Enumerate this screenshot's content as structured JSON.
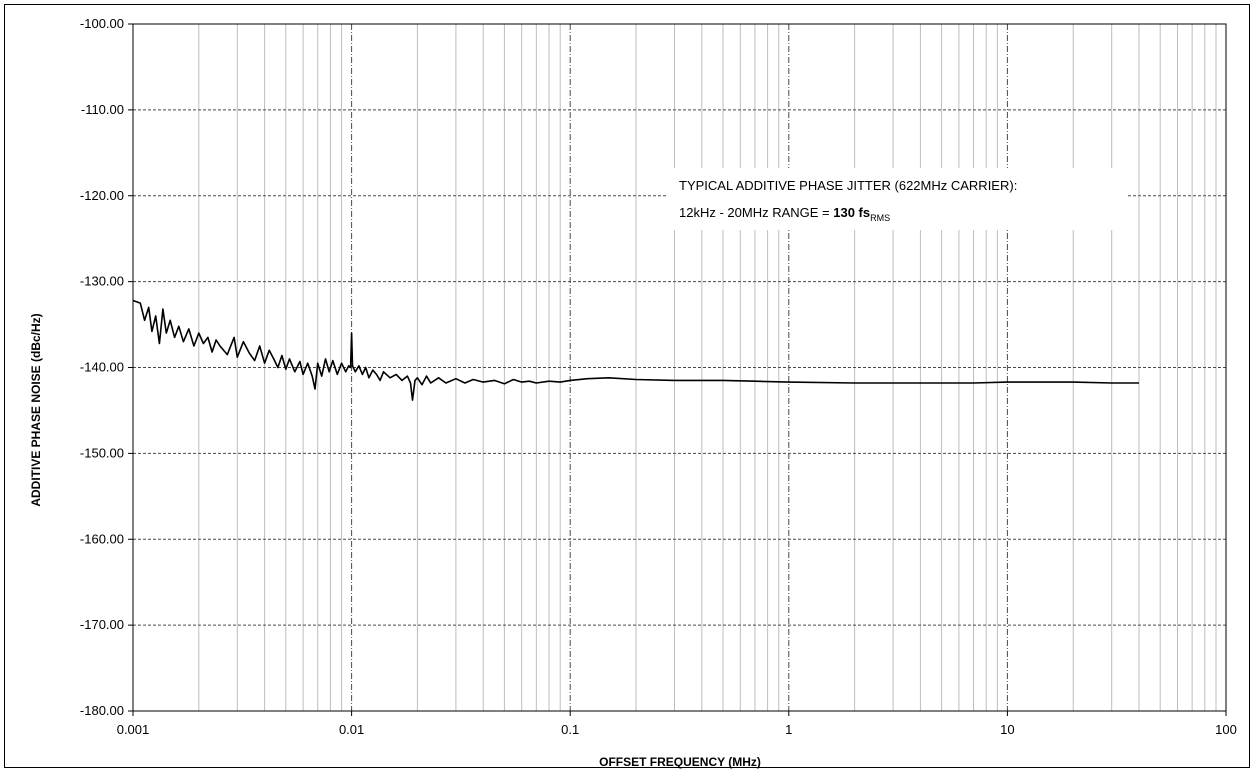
{
  "chart_data": {
    "type": "line",
    "title": "",
    "xlabel": "OFFSET FREQUENCY (MHz)",
    "ylabel": "ADDITIVE PHASE NOISE (dBc/Hz)",
    "xscale": "log",
    "xlim": [
      0.001,
      100
    ],
    "ylim": [
      -180,
      -100
    ],
    "x_ticks": [
      "0.001",
      "0.01",
      "0.1",
      "1",
      "10",
      "100"
    ],
    "y_ticks": [
      "-100.00",
      "-110.00",
      "-120.00",
      "-130.00",
      "-140.00",
      "-150.00",
      "-160.00",
      "-170.00",
      "-180.00"
    ],
    "grid": true,
    "legend": "none",
    "line_color": "#000000",
    "annotation": {
      "line1": "TYPICAL ADDITIVE PHASE JITTER (622MHz CARRIER):",
      "line2_prefix": "12kHz - 20MHz RANGE = ",
      "line2_value": "130 fs",
      "line2_subscript": "RMS"
    },
    "series": [
      {
        "x": [
          0.001,
          0.00108,
          0.00113,
          0.00118,
          0.00122,
          0.00127,
          0.00132,
          0.00137,
          0.00142,
          0.00148,
          0.00155,
          0.00162,
          0.0017,
          0.0018,
          0.0019,
          0.002,
          0.0021,
          0.0022,
          0.0023,
          0.0024,
          0.0025,
          0.0027,
          0.0029,
          0.003,
          0.0032,
          0.0034,
          0.0036,
          0.0038,
          0.004,
          0.0042,
          0.0044,
          0.0046,
          0.0048,
          0.005,
          0.0052,
          0.0055,
          0.0058,
          0.006,
          0.0063,
          0.0066,
          0.0068,
          0.007,
          0.0073,
          0.0076,
          0.0079,
          0.0082,
          0.0086,
          0.009,
          0.0094,
          0.0097,
          0.0099,
          0.01,
          0.0101,
          0.0104,
          0.0108,
          0.0112,
          0.0116,
          0.012,
          0.0125,
          0.013,
          0.0135,
          0.014,
          0.015,
          0.016,
          0.017,
          0.018,
          0.0186,
          0.019,
          0.0195,
          0.02,
          0.021,
          0.022,
          0.023,
          0.025,
          0.027,
          0.03,
          0.033,
          0.036,
          0.04,
          0.045,
          0.05,
          0.055,
          0.06,
          0.065,
          0.07,
          0.08,
          0.09,
          0.1,
          0.12,
          0.15,
          0.2,
          0.3,
          0.5,
          0.7,
          1,
          2,
          3,
          5,
          7,
          10,
          20,
          30,
          40
        ],
        "y": [
          -132.2,
          -132.5,
          -134.5,
          -133.0,
          -135.8,
          -134.0,
          -137.2,
          -133.2,
          -136.0,
          -134.5,
          -136.5,
          -135.2,
          -137.0,
          -135.5,
          -137.5,
          -136.0,
          -137.2,
          -136.5,
          -138.2,
          -136.8,
          -137.5,
          -138.5,
          -136.5,
          -138.8,
          -137.0,
          -138.3,
          -139.2,
          -137.5,
          -139.5,
          -138.0,
          -139.0,
          -140.0,
          -138.6,
          -140.2,
          -139.0,
          -140.5,
          -139.3,
          -140.8,
          -139.5,
          -141.0,
          -142.5,
          -139.5,
          -141.0,
          -139.0,
          -140.5,
          -139.2,
          -140.8,
          -139.5,
          -140.5,
          -139.8,
          -140.0,
          -136.0,
          -139.8,
          -140.5,
          -139.8,
          -140.8,
          -140.0,
          -141.2,
          -140.3,
          -140.8,
          -141.5,
          -140.5,
          -141.2,
          -140.8,
          -141.5,
          -141.0,
          -141.8,
          -143.8,
          -141.5,
          -141.2,
          -142.0,
          -141.0,
          -141.8,
          -141.2,
          -141.8,
          -141.3,
          -141.8,
          -141.4,
          -141.7,
          -141.5,
          -141.9,
          -141.4,
          -141.7,
          -141.6,
          -141.8,
          -141.6,
          -141.7,
          -141.5,
          -141.3,
          -141.2,
          -141.4,
          -141.5,
          -141.5,
          -141.6,
          -141.7,
          -141.8,
          -141.8,
          -141.8,
          -141.8,
          -141.7,
          -141.7,
          -141.8,
          -141.8
        ]
      }
    ]
  }
}
